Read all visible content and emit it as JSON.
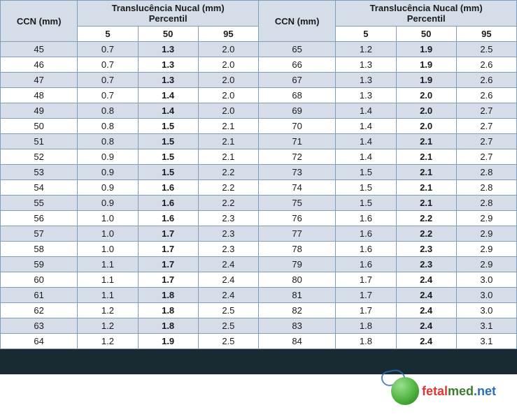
{
  "table": {
    "header": {
      "ccn": "CCN (mm)",
      "tn": "Translucência Nucal (mm)",
      "percentil": "Percentil",
      "p5": "5",
      "p50": "50",
      "p95": "95"
    },
    "colors": {
      "header_bg": "#d4dde8",
      "alt_bg": "#d4dde8",
      "norm_bg": "#ffffff",
      "border": "#7f9db9",
      "text": "#1a1a1a",
      "darkbar": "#1a2a33"
    },
    "left": [
      {
        "ccn": "45",
        "p5": "0.7",
        "p50": "1.3",
        "p95": "2.0"
      },
      {
        "ccn": "46",
        "p5": "0.7",
        "p50": "1.3",
        "p95": "2.0"
      },
      {
        "ccn": "47",
        "p5": "0.7",
        "p50": "1.3",
        "p95": "2.0"
      },
      {
        "ccn": "48",
        "p5": "0.7",
        "p50": "1.4",
        "p95": "2.0"
      },
      {
        "ccn": "49",
        "p5": "0.8",
        "p50": "1.4",
        "p95": "2.0"
      },
      {
        "ccn": "50",
        "p5": "0.8",
        "p50": "1.5",
        "p95": "2.1"
      },
      {
        "ccn": "51",
        "p5": "0.8",
        "p50": "1.5",
        "p95": "2.1"
      },
      {
        "ccn": "52",
        "p5": "0.9",
        "p50": "1.5",
        "p95": "2.1"
      },
      {
        "ccn": "53",
        "p5": "0.9",
        "p50": "1.5",
        "p95": "2.2"
      },
      {
        "ccn": "54",
        "p5": "0.9",
        "p50": "1.6",
        "p95": "2.2"
      },
      {
        "ccn": "55",
        "p5": "0.9",
        "p50": "1.6",
        "p95": "2.2"
      },
      {
        "ccn": "56",
        "p5": "1.0",
        "p50": "1.6",
        "p95": "2.3"
      },
      {
        "ccn": "57",
        "p5": "1.0",
        "p50": "1.7",
        "p95": "2.3"
      },
      {
        "ccn": "58",
        "p5": "1.0",
        "p50": "1.7",
        "p95": "2.3"
      },
      {
        "ccn": "59",
        "p5": "1.1",
        "p50": "1.7",
        "p95": "2.4"
      },
      {
        "ccn": "60",
        "p5": "1.1",
        "p50": "1.7",
        "p95": "2.4"
      },
      {
        "ccn": "61",
        "p5": "1.1",
        "p50": "1.8",
        "p95": "2.4"
      },
      {
        "ccn": "62",
        "p5": "1.2",
        "p50": "1.8",
        "p95": "2.5"
      },
      {
        "ccn": "63",
        "p5": "1.2",
        "p50": "1.8",
        "p95": "2.5"
      },
      {
        "ccn": "64",
        "p5": "1.2",
        "p50": "1.9",
        "p95": "2.5"
      }
    ],
    "right": [
      {
        "ccn": "65",
        "p5": "1.2",
        "p50": "1.9",
        "p95": "2.5"
      },
      {
        "ccn": "66",
        "p5": "1.3",
        "p50": "1.9",
        "p95": "2.6"
      },
      {
        "ccn": "67",
        "p5": "1.3",
        "p50": "1.9",
        "p95": "2.6"
      },
      {
        "ccn": "68",
        "p5": "1.3",
        "p50": "2.0",
        "p95": "2.6"
      },
      {
        "ccn": "69",
        "p5": "1.4",
        "p50": "2.0",
        "p95": "2.7"
      },
      {
        "ccn": "70",
        "p5": "1.4",
        "p50": "2.0",
        "p95": "2.7"
      },
      {
        "ccn": "71",
        "p5": "1.4",
        "p50": "2.1",
        "p95": "2.7"
      },
      {
        "ccn": "72",
        "p5": "1.4",
        "p50": "2.1",
        "p95": "2.7"
      },
      {
        "ccn": "73",
        "p5": "1.5",
        "p50": "2.1",
        "p95": "2.8"
      },
      {
        "ccn": "74",
        "p5": "1.5",
        "p50": "2.1",
        "p95": "2.8"
      },
      {
        "ccn": "75",
        "p5": "1.5",
        "p50": "2.1",
        "p95": "2.8"
      },
      {
        "ccn": "76",
        "p5": "1.6",
        "p50": "2.2",
        "p95": "2.9"
      },
      {
        "ccn": "77",
        "p5": "1.6",
        "p50": "2.2",
        "p95": "2.9"
      },
      {
        "ccn": "78",
        "p5": "1.6",
        "p50": "2.3",
        "p95": "2.9"
      },
      {
        "ccn": "79",
        "p5": "1.6",
        "p50": "2.3",
        "p95": "2.9"
      },
      {
        "ccn": "80",
        "p5": "1.7",
        "p50": "2.4",
        "p95": "3.0"
      },
      {
        "ccn": "81",
        "p5": "1.7",
        "p50": "2.4",
        "p95": "3.0"
      },
      {
        "ccn": "82",
        "p5": "1.7",
        "p50": "2.4",
        "p95": "3.0"
      },
      {
        "ccn": "83",
        "p5": "1.8",
        "p50": "2.4",
        "p95": "3.1"
      },
      {
        "ccn": "84",
        "p5": "1.8",
        "p50": "2.4",
        "p95": "3.1"
      }
    ]
  },
  "logo": {
    "part1": "fetal",
    "part2": "med",
    "part3": ".",
    "part4": "net",
    "globe_color": "#4fb33f",
    "red": "#e33434",
    "green": "#3b7d2e",
    "blue": "#2a6fb0"
  }
}
